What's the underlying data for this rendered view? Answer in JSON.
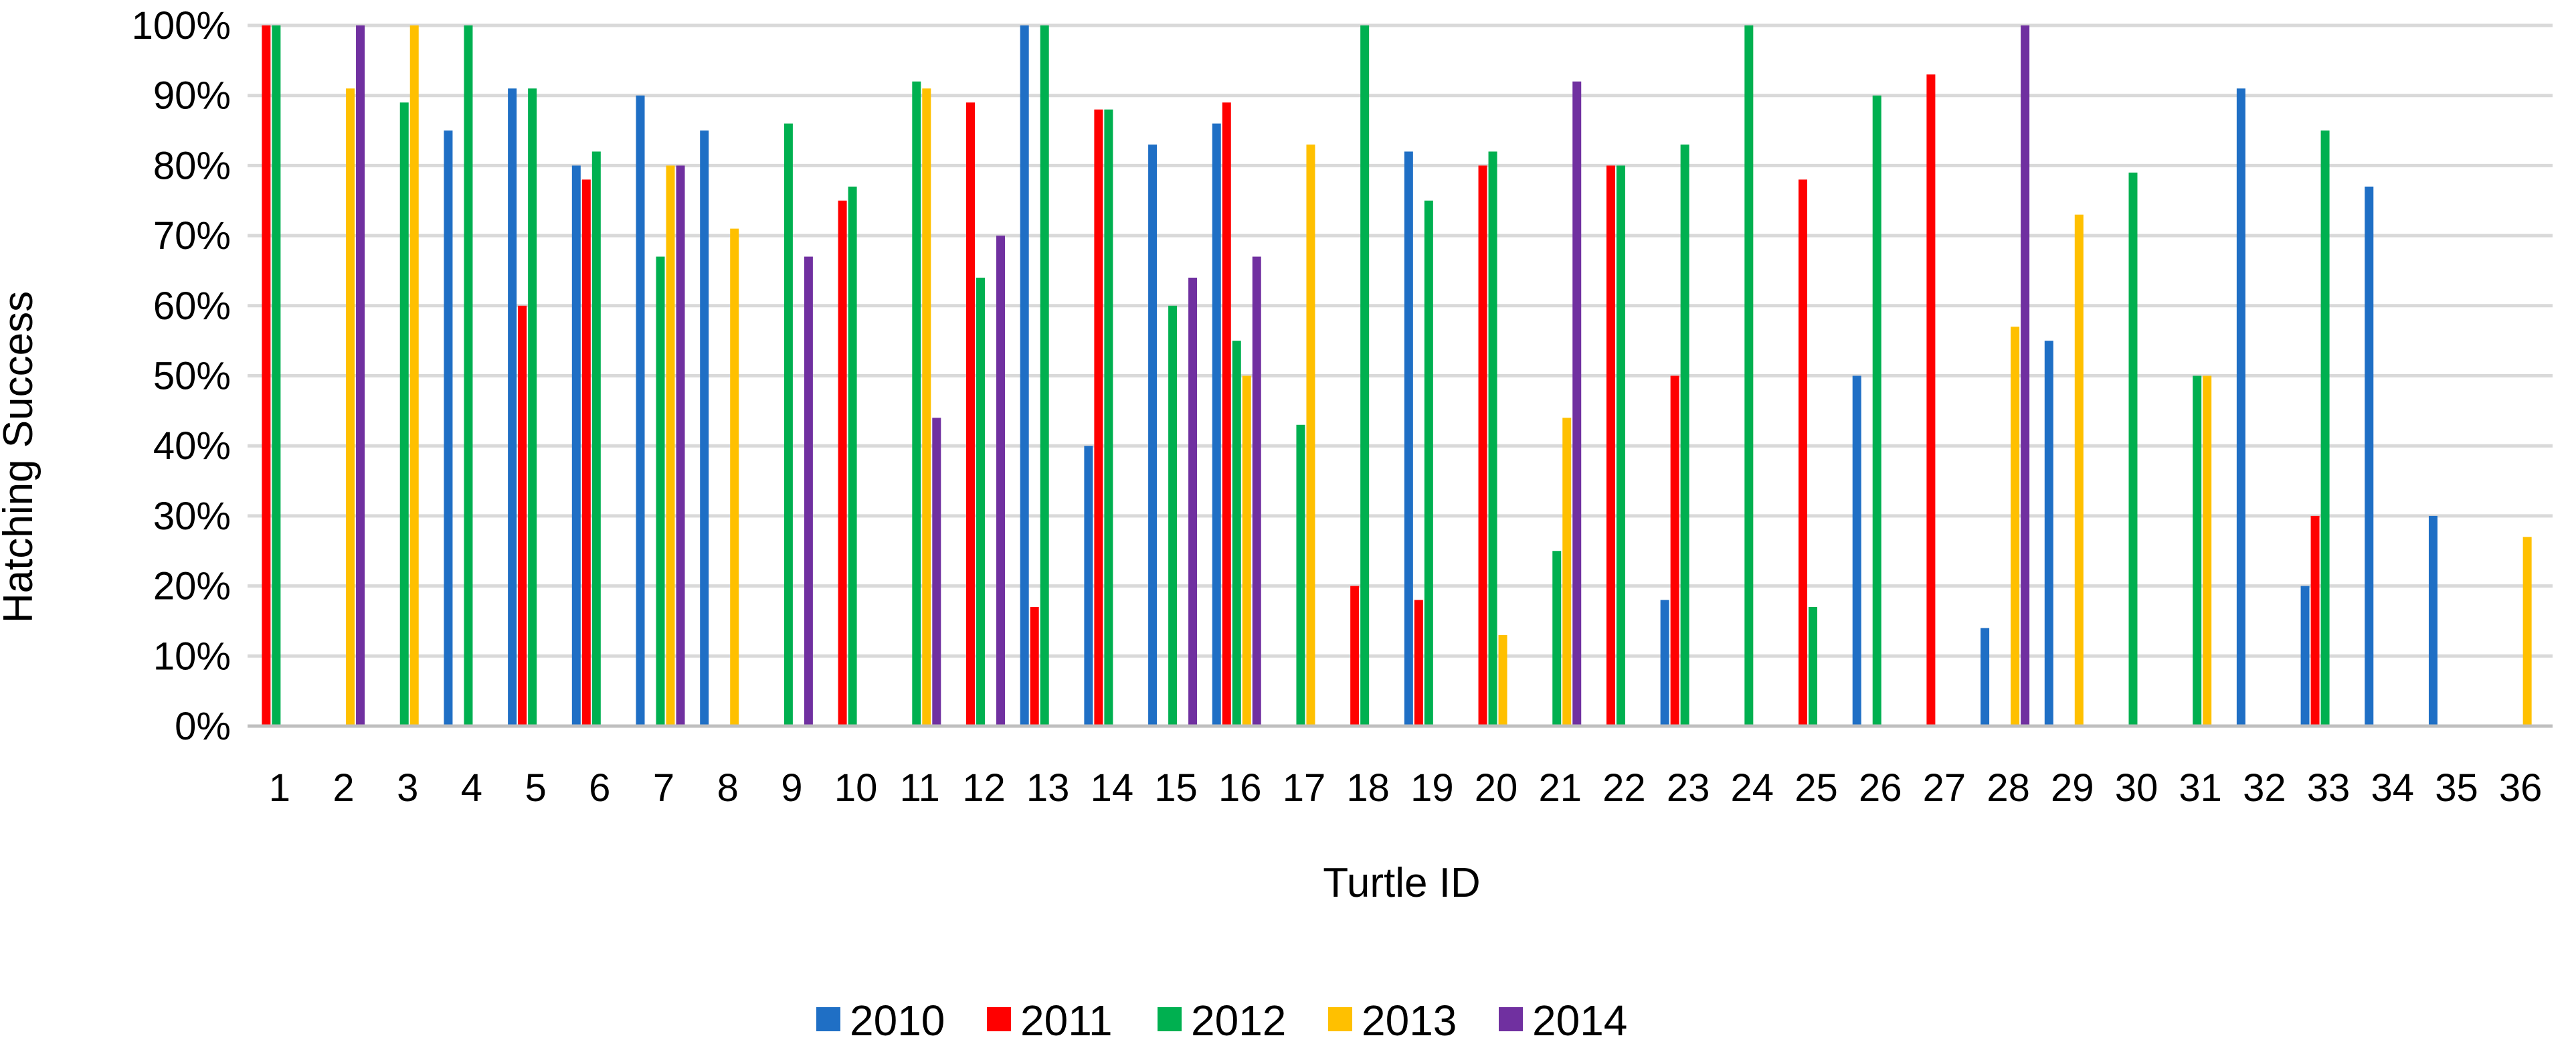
{
  "chart_data": {
    "type": "bar",
    "ylabel": "Hatching Success",
    "xlabel": "Turtle ID",
    "ylim": [
      0,
      100
    ],
    "y_ticks": [
      "0%",
      "10%",
      "20%",
      "30%",
      "40%",
      "50%",
      "60%",
      "70%",
      "80%",
      "90%",
      "100%"
    ],
    "grid": true,
    "legend_position": "bottom",
    "categories": [
      "1",
      "2",
      "3",
      "4",
      "5",
      "6",
      "7",
      "8",
      "9",
      "10",
      "11",
      "12",
      "13",
      "14",
      "15",
      "16",
      "17",
      "18",
      "19",
      "20",
      "21",
      "22",
      "23",
      "24",
      "25",
      "26",
      "27",
      "28",
      "29",
      "30",
      "31",
      "32",
      "33",
      "34",
      "35",
      "36"
    ],
    "series": [
      {
        "name": "2010",
        "color": "#1f6fc5",
        "values": [
          0,
          0,
          0,
          85,
          91,
          80,
          90,
          85,
          0,
          0,
          0,
          0,
          100,
          40,
          83,
          86,
          0,
          0,
          82,
          0,
          0,
          0,
          18,
          0,
          0,
          50,
          0,
          14,
          55,
          0,
          0,
          91,
          20,
          77,
          30,
          0
        ]
      },
      {
        "name": "2011",
        "color": "#ff0000",
        "values": [
          100,
          0,
          0,
          0,
          60,
          78,
          0,
          0,
          0,
          75,
          0,
          89,
          17,
          88,
          0,
          89,
          0,
          20,
          18,
          80,
          0,
          80,
          50,
          0,
          78,
          0,
          93,
          0,
          0,
          0,
          0,
          0,
          30,
          0,
          0,
          0
        ]
      },
      {
        "name": "2012",
        "color": "#00b050",
        "values": [
          100,
          0,
          89,
          100,
          91,
          82,
          67,
          0,
          86,
          77,
          92,
          64,
          100,
          88,
          60,
          55,
          43,
          100,
          75,
          82,
          25,
          80,
          83,
          100,
          17,
          90,
          0,
          0,
          0,
          79,
          50,
          0,
          85,
          0,
          0,
          0
        ]
      },
      {
        "name": "2013",
        "color": "#ffc000",
        "values": [
          0,
          91,
          100,
          0,
          0,
          0,
          80,
          71,
          0,
          0,
          91,
          0,
          0,
          0,
          0,
          50,
          83,
          0,
          0,
          13,
          44,
          0,
          0,
          0,
          0,
          0,
          0,
          57,
          73,
          0,
          50,
          0,
          0,
          0,
          0,
          27
        ]
      },
      {
        "name": "2014",
        "color": "#7030a0",
        "values": [
          0,
          100,
          0,
          0,
          0,
          0,
          80,
          0,
          67,
          0,
          44,
          70,
          0,
          0,
          64,
          67,
          0,
          0,
          0,
          0,
          92,
          0,
          0,
          0,
          0,
          0,
          0,
          100,
          0,
          0,
          0,
          0,
          0,
          0,
          0,
          0
        ]
      }
    ]
  }
}
